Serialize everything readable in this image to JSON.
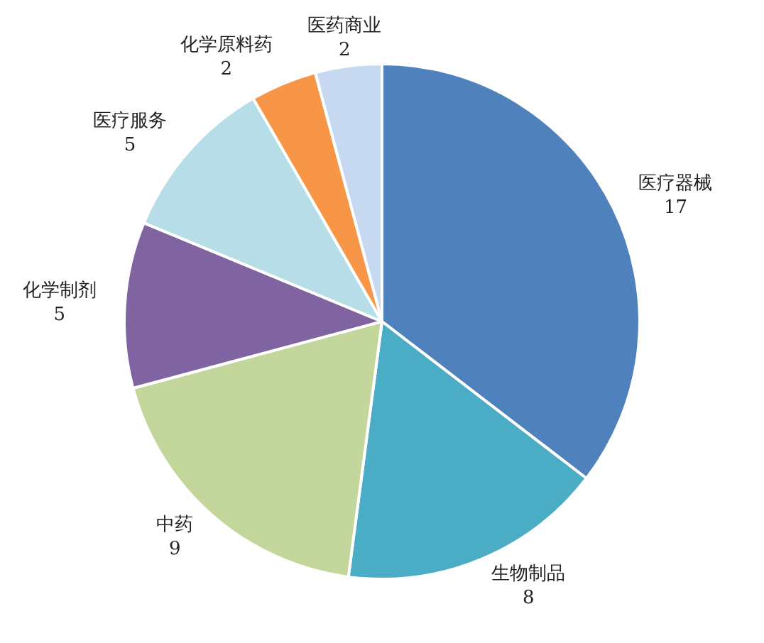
{
  "chart_data": {
    "type": "pie",
    "categories": [
      "医疗器械",
      "生物制品",
      "中药",
      "化学制剂",
      "医疗服务",
      "化学原料药",
      "医药商业"
    ],
    "values": [
      17,
      8,
      9,
      5,
      5,
      2,
      2
    ],
    "colors": [
      "#4f81bd",
      "#4bacc6",
      "#c3d69b",
      "#8064a2",
      "#b7dde8",
      "#f79646",
      "#c6d9f0"
    ],
    "data_labels": true
  }
}
